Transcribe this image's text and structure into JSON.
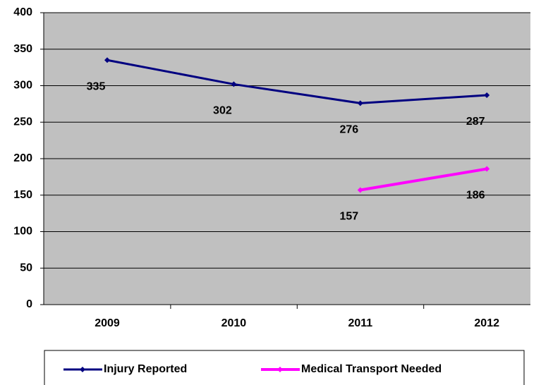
{
  "chart_data": {
    "type": "line",
    "categories": [
      "2009",
      "2010",
      "2011",
      "2012"
    ],
    "series": [
      {
        "name": "Injury Reported",
        "color": "#000080",
        "values": [
          335,
          302,
          276,
          287
        ]
      },
      {
        "name": "Medical Transport Needed",
        "color": "#ff00ff",
        "values": [
          null,
          null,
          157,
          186
        ]
      }
    ],
    "ylim": [
      0,
      400
    ],
    "yticks": [
      0,
      50,
      100,
      150,
      200,
      250,
      300,
      350,
      400
    ],
    "grid": true
  }
}
